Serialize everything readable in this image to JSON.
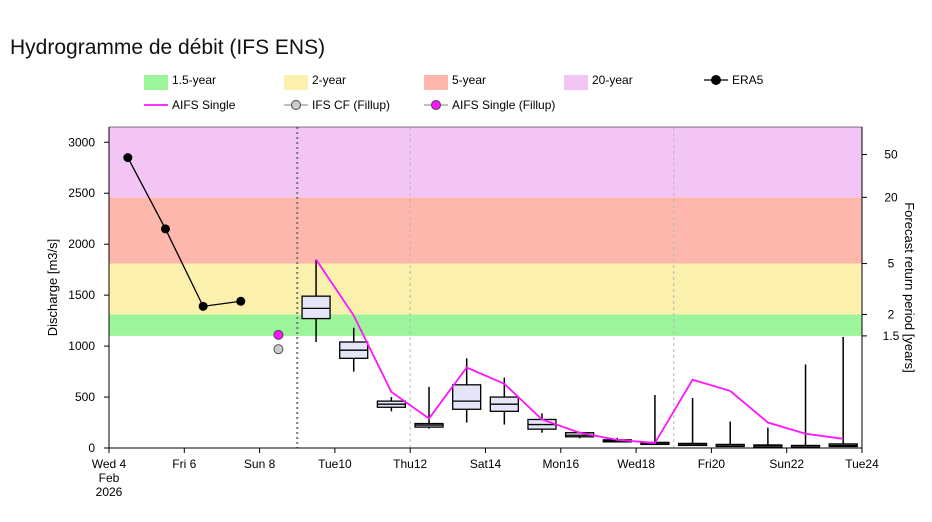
{
  "title": "Hydrogramme de débit (IFS ENS)",
  "chart_data": {
    "type": "boxplot-line",
    "title": "Hydrogramme de débit (IFS ENS)",
    "ylabel": "Discharge [m3/s]",
    "ylabel_right": "Forecast return period [years]",
    "ylim": [
      0,
      3150
    ],
    "yticks": [
      0,
      500,
      1000,
      1500,
      2000,
      2500,
      3000
    ],
    "xlim_days": [
      4,
      24
    ],
    "x_ticks": [
      {
        "day": 4,
        "label": "Wed 4",
        "sub": [
          "Feb",
          "2026"
        ]
      },
      {
        "day": 6,
        "label": "Fri 6"
      },
      {
        "day": 8,
        "label": "Sun 8"
      },
      {
        "day": 10,
        "label": "Tue10"
      },
      {
        "day": 12,
        "label": "Thu12"
      },
      {
        "day": 14,
        "label": "Sat14"
      },
      {
        "day": 16,
        "label": "Mon16"
      },
      {
        "day": 18,
        "label": "Wed18"
      },
      {
        "day": 20,
        "label": "Fri20"
      },
      {
        "day": 22,
        "label": "Sun22"
      },
      {
        "day": 24,
        "label": "Tue24"
      }
    ],
    "thresholds": [
      {
        "name": "1.5-year",
        "from": 1100,
        "to": 1310,
        "color": "#9cf59a"
      },
      {
        "name": "2-year",
        "from": 1310,
        "to": 1810,
        "color": "#fbf1ad"
      },
      {
        "name": "5-year",
        "from": 1810,
        "to": 2460,
        "color": "#feb7ad"
      },
      {
        "name": "20-year",
        "from": 2460,
        "to": 3150,
        "color": "#f2c5f4"
      }
    ],
    "return_period_axis": [
      {
        "label": "50",
        "value": 2880
      },
      {
        "label": "20",
        "value": 2460
      },
      {
        "label": "5",
        "value": 1810
      },
      {
        "label": "2",
        "value": 1310
      },
      {
        "label": "1.5",
        "value": 1100
      }
    ],
    "legend": [
      {
        "key": "1.5-year",
        "kind": "patch",
        "color": "#9cf59a",
        "label": "1.5-year"
      },
      {
        "key": "2-year",
        "kind": "patch",
        "color": "#fbf1ad",
        "label": "2-year"
      },
      {
        "key": "5-year",
        "kind": "patch",
        "color": "#feb7ad",
        "label": "5-year"
      },
      {
        "key": "20-year",
        "kind": "patch",
        "color": "#f2c5f4",
        "label": "20-year"
      },
      {
        "key": "era5",
        "kind": "line-marker",
        "color": "#000000",
        "fill": "#000000",
        "label": "ERA5"
      },
      {
        "key": "aifs",
        "kind": "line",
        "color": "#ff14ff",
        "label": "AIFS Single"
      },
      {
        "key": "ifs-cf",
        "kind": "line-marker",
        "color": "#999999",
        "fill": "#cccccc",
        "label": "IFS CF (Fillup)"
      },
      {
        "key": "aifs-fillup",
        "kind": "line-marker",
        "color": "#999999",
        "fill": "#ff14ff",
        "label": "AIFS Single (Fillup)"
      }
    ],
    "era5": {
      "x": [
        4.5,
        5.5,
        6.5,
        7.5
      ],
      "y": [
        2850,
        2150,
        1390,
        1440
      ]
    },
    "ifs_cf_fillup": {
      "x": 8.5,
      "y": 970
    },
    "aifs_fillup": {
      "x": 8.5,
      "y": 1110
    },
    "forecast_start_day": 9,
    "aifs_single": {
      "x": [
        9.5,
        10.5,
        11.5,
        12.5,
        13.5,
        14.5,
        15.5,
        16.5,
        17.5,
        18.5,
        19.5,
        20.5,
        21.5,
        22.5,
        23.5
      ],
      "y": [
        1850,
        1300,
        550,
        290,
        790,
        630,
        280,
        150,
        80,
        50,
        670,
        560,
        250,
        140,
        90
      ]
    },
    "ensemble_boxes": [
      {
        "x": 9.5,
        "min": 1040,
        "q1": 1270,
        "median": 1370,
        "q3": 1490,
        "max": 1850
      },
      {
        "x": 10.5,
        "min": 750,
        "q1": 880,
        "median": 960,
        "q3": 1040,
        "max": 1180
      },
      {
        "x": 11.5,
        "min": 360,
        "q1": 400,
        "median": 430,
        "q3": 460,
        "max": 500
      },
      {
        "x": 12.5,
        "min": 190,
        "q1": 205,
        "median": 225,
        "q3": 240,
        "max": 600
      },
      {
        "x": 13.5,
        "min": 250,
        "q1": 380,
        "median": 460,
        "q3": 620,
        "max": 880
      },
      {
        "x": 14.5,
        "min": 230,
        "q1": 360,
        "median": 430,
        "q3": 500,
        "max": 690
      },
      {
        "x": 15.5,
        "min": 150,
        "q1": 185,
        "median": 230,
        "q3": 280,
        "max": 340
      },
      {
        "x": 16.5,
        "min": 95,
        "q1": 110,
        "median": 125,
        "q3": 150,
        "max": 160
      },
      {
        "x": 17.5,
        "min": 55,
        "q1": 62,
        "median": 70,
        "q3": 80,
        "max": 100
      },
      {
        "x": 18.5,
        "min": 35,
        "q1": 42,
        "median": 48,
        "q3": 55,
        "max": 520
      },
      {
        "x": 19.5,
        "min": 25,
        "q1": 32,
        "median": 38,
        "q3": 45,
        "max": 490
      },
      {
        "x": 20.5,
        "min": 20,
        "q1": 25,
        "median": 30,
        "q3": 35,
        "max": 260
      },
      {
        "x": 21.5,
        "min": 15,
        "q1": 20,
        "median": 25,
        "q3": 30,
        "max": 200
      },
      {
        "x": 22.5,
        "min": 10,
        "q1": 15,
        "median": 20,
        "q3": 25,
        "max": 820
      },
      {
        "x": 23.5,
        "min": 10,
        "q1": 15,
        "median": 25,
        "q3": 40,
        "max": 1090
      }
    ],
    "vertical_guides": [
      {
        "day": 9,
        "style": "dotted",
        "color": "#777777"
      },
      {
        "day": 12,
        "style": "dashed",
        "color": "#b8b8b8"
      },
      {
        "day": 19,
        "style": "dashed",
        "color": "#b8b8b8"
      }
    ],
    "colors": {
      "aifs": "#ff14ff",
      "era5": "#000000",
      "box_fill": "#e4e6f7",
      "box_edge": "#000000"
    }
  }
}
